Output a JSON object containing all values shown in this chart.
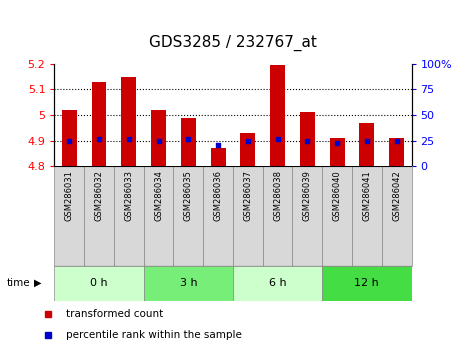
{
  "title": "GDS3285 / 232767_at",
  "samples": [
    "GSM286031",
    "GSM286032",
    "GSM286033",
    "GSM286034",
    "GSM286035",
    "GSM286036",
    "GSM286037",
    "GSM286038",
    "GSM286039",
    "GSM286040",
    "GSM286041",
    "GSM286042"
  ],
  "bar_values": [
    5.02,
    5.13,
    5.15,
    5.02,
    4.99,
    4.87,
    4.93,
    5.195,
    5.01,
    4.91,
    4.97,
    4.91
  ],
  "blue_values": [
    4.9,
    4.905,
    4.905,
    4.9,
    4.905,
    4.885,
    4.898,
    4.905,
    4.9,
    4.892,
    4.9,
    4.9
  ],
  "bar_bottom": 4.8,
  "ylim_left": [
    4.8,
    5.2
  ],
  "ylim_right": [
    0,
    100
  ],
  "yticks_left": [
    4.8,
    4.9,
    5.0,
    5.1,
    5.2
  ],
  "yticks_right": [
    0,
    25,
    50,
    75,
    100
  ],
  "ytick_labels_left": [
    "4.8",
    "4.9",
    "5",
    "5.1",
    "5.2"
  ],
  "ytick_labels_right": [
    "0",
    "25",
    "50",
    "75",
    "100%"
  ],
  "bar_color": "#cc0000",
  "blue_color": "#0000cc",
  "groups": [
    {
      "label": "0 h",
      "start": 0,
      "end": 3,
      "color": "#ccffcc"
    },
    {
      "label": "3 h",
      "start": 3,
      "end": 6,
      "color": "#77ee77"
    },
    {
      "label": "6 h",
      "start": 6,
      "end": 9,
      "color": "#ccffcc"
    },
    {
      "label": "12 h",
      "start": 9,
      "end": 12,
      "color": "#44dd44"
    }
  ],
  "time_label": "time",
  "legend_bar_label": "transformed count",
  "legend_blue_label": "percentile rank within the sample",
  "title_fontsize": 11,
  "tick_fontsize": 8,
  "bar_width": 0.5,
  "sample_label_fontsize": 6,
  "group_label_fontsize": 8,
  "gray_bg": "#d8d8d8",
  "gray_border": "#888888"
}
